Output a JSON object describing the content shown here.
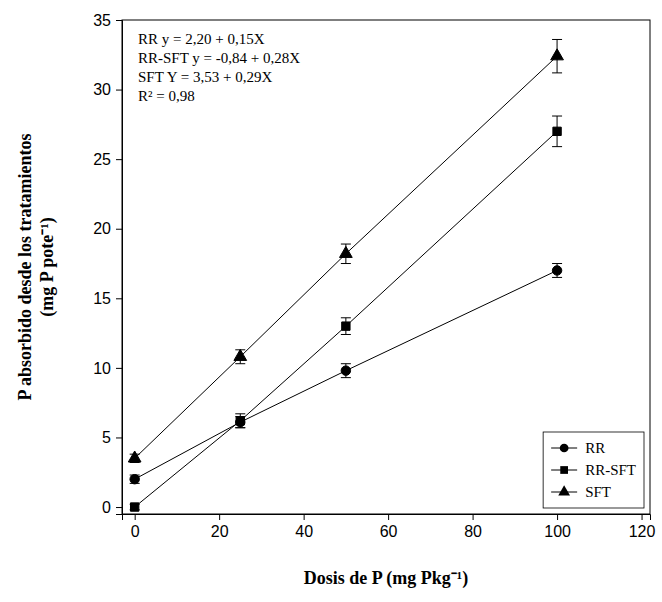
{
  "chart_data": {
    "type": "line",
    "x_label": "Dosis de P (mg Pkg⁻¹)",
    "y_label": "P absorbido desde los tratamientos (mg P pote⁻¹)",
    "x": [
      0,
      25,
      50,
      100
    ],
    "xlim": [
      -3,
      122
    ],
    "xticks": [
      0,
      20,
      40,
      60,
      80,
      100,
      120
    ],
    "ylim": [
      -0.5,
      35
    ],
    "yticks": [
      0,
      5,
      10,
      15,
      20,
      25,
      30,
      35
    ],
    "legend": "lower right",
    "series": [
      {
        "name": "RR",
        "color": "#000000",
        "marker": "circle",
        "values": [
          2.0,
          6.1,
          9.8,
          17.0
        ],
        "errors": [
          0.3,
          0.4,
          0.5,
          0.5
        ]
      },
      {
        "name": "RR-SFT",
        "color": "#000000",
        "marker": "square",
        "values": [
          0.0,
          6.2,
          13.0,
          27.0
        ],
        "errors": [
          0.2,
          0.5,
          0.6,
          1.1
        ]
      },
      {
        "name": "SFT",
        "color": "#000000",
        "marker": "triangle",
        "values": [
          3.5,
          10.8,
          18.2,
          32.4
        ],
        "errors": [
          0.3,
          0.5,
          0.7,
          1.2
        ]
      }
    ],
    "annotations": [
      "RR y = 2,20 + 0,15X",
      "RR-SFT y = -0,84 + 0,28X",
      "SFT Y = 3,53 + 0,29X",
      "R² = 0,98"
    ]
  }
}
